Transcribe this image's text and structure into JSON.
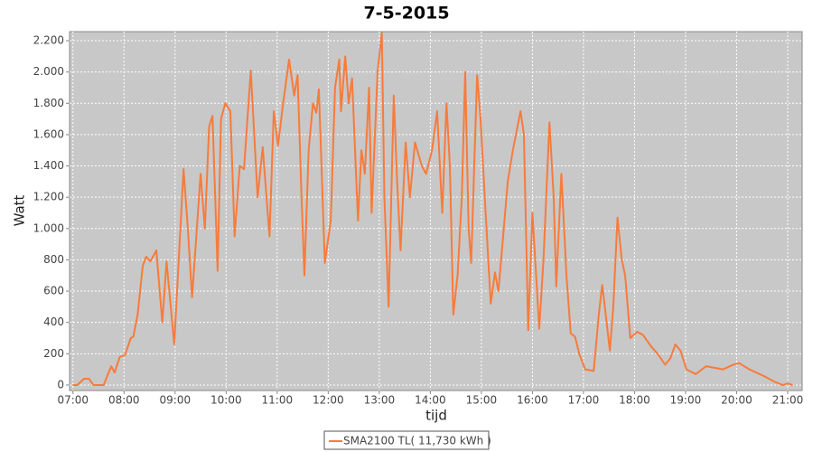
{
  "chart_data": {
    "type": "line",
    "title": "7-5-2015",
    "x_label": "tijd",
    "y_label": "Watt",
    "xlim": [
      416,
      1277
    ],
    "ylim": [
      -35,
      2258
    ],
    "xticks": [
      {
        "value": 420,
        "label": "07:00"
      },
      {
        "value": 480,
        "label": "08:00"
      },
      {
        "value": 540,
        "label": "09:00"
      },
      {
        "value": 600,
        "label": "10:00"
      },
      {
        "value": 660,
        "label": "11:00"
      },
      {
        "value": 720,
        "label": "12:00"
      },
      {
        "value": 780,
        "label": "13:00"
      },
      {
        "value": 840,
        "label": "14:00"
      },
      {
        "value": 900,
        "label": "15:00"
      },
      {
        "value": 960,
        "label": "16:00"
      },
      {
        "value": 1020,
        "label": "17:00"
      },
      {
        "value": 1080,
        "label": "18:00"
      },
      {
        "value": 1140,
        "label": "19:00"
      },
      {
        "value": 1200,
        "label": "20:00"
      },
      {
        "value": 1260,
        "label": "21:00"
      }
    ],
    "yticks": [
      0,
      200,
      400,
      600,
      800,
      {
        "value": 1000,
        "label": "1.000"
      },
      {
        "value": 1200,
        "label": "1.200"
      },
      {
        "value": 1400,
        "label": "1.400"
      },
      {
        "value": 1600,
        "label": "1.600"
      },
      {
        "value": 1800,
        "label": "1.800"
      },
      {
        "value": 2000,
        "label": "2.000"
      },
      {
        "value": 2200,
        "label": "2.200"
      }
    ],
    "grid": true,
    "legend": "bottom",
    "x": [
      420,
      425,
      433,
      439,
      444,
      456,
      465,
      469,
      475,
      481,
      488,
      491,
      496,
      502,
      506,
      511,
      518,
      525,
      530,
      539,
      550,
      555,
      560,
      570,
      575,
      580,
      584,
      590,
      594,
      599,
      605,
      610,
      616,
      621,
      629,
      637,
      643,
      651,
      656,
      661,
      667,
      674,
      680,
      684,
      688,
      692,
      697,
      702,
      706,
      709,
      716,
      723,
      728,
      733,
      735,
      740,
      744,
      748,
      755,
      759,
      763,
      768,
      771,
      778,
      783,
      786,
      791,
      797,
      801,
      805,
      811,
      816,
      822,
      830,
      835,
      842,
      848,
      854,
      859,
      863,
      867,
      872,
      877,
      881,
      885,
      888,
      895,
      899,
      904,
      911,
      916,
      920,
      924,
      931,
      937,
      946,
      950,
      955,
      960,
      968,
      973,
      980,
      985,
      988,
      994,
      1000,
      1005,
      1010,
      1015,
      1022,
      1032,
      1038,
      1042,
      1044,
      1051,
      1055,
      1060,
      1065,
      1069,
      1075,
      1083,
      1090,
      1099,
      1107,
      1116,
      1122,
      1128,
      1134,
      1141,
      1152,
      1164,
      1184,
      1196,
      1203,
      1215,
      1231,
      1245,
      1254,
      1260,
      1266
    ],
    "series": [
      {
        "name": "SMA2100 TL( 11,730 kWh )",
        "color": "#f77b3c",
        "values": [
          0,
          0,
          40,
          40,
          0,
          0,
          120,
          80,
          180,
          190,
          300,
          310,
          450,
          760,
          820,
          790,
          860,
          400,
          790,
          260,
          1380,
          1000,
          560,
          1350,
          1000,
          1650,
          1720,
          730,
          1700,
          1800,
          1750,
          950,
          1400,
          1380,
          2010,
          1200,
          1520,
          950,
          1750,
          1530,
          1800,
          2080,
          1850,
          1980,
          1300,
          700,
          1500,
          1800,
          1740,
          1890,
          780,
          1050,
          1900,
          2080,
          1750,
          2100,
          1800,
          1960,
          1050,
          1500,
          1350,
          1900,
          1100,
          2000,
          2250,
          1200,
          500,
          1850,
          1300,
          860,
          1550,
          1200,
          1550,
          1400,
          1350,
          1500,
          1750,
          1100,
          1800,
          1400,
          450,
          700,
          1200,
          2000,
          1000,
          780,
          1980,
          1700,
          1200,
          520,
          720,
          600,
          850,
          1300,
          1500,
          1750,
          1600,
          350,
          1100,
          360,
          800,
          1680,
          1200,
          630,
          1350,
          700,
          330,
          310,
          200,
          100,
          90,
          450,
          640,
          550,
          220,
          500,
          1070,
          800,
          700,
          300,
          340,
          320,
          250,
          200,
          130,
          170,
          260,
          220,
          100,
          70,
          120,
          100,
          130,
          140,
          100,
          60,
          20,
          0,
          10,
          0
        ]
      }
    ]
  }
}
